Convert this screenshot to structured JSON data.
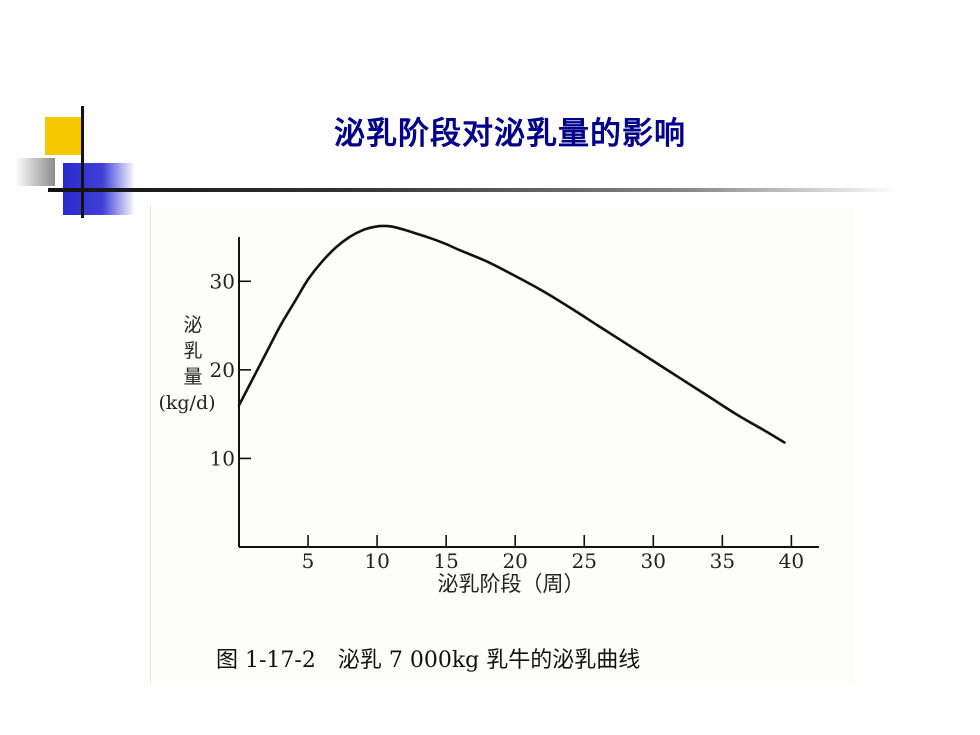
{
  "slide": {
    "title": "泌乳阶段对泌乳量的影响"
  },
  "figure": {
    "caption": "图 1-17-2　泌乳 7 000kg 乳牛的泌乳曲线"
  },
  "chart_data": {
    "type": "line",
    "title": "",
    "xlabel": "泌乳阶段（周）",
    "ylabel_lines": [
      "泌",
      "乳",
      "量",
      "(kg/d)"
    ],
    "xlim": [
      0,
      42
    ],
    "ylim": [
      0,
      35
    ],
    "x_ticks": [
      5,
      10,
      15,
      20,
      25,
      30,
      35,
      40
    ],
    "x_tick_labels": [
      "5",
      "10",
      "15",
      "20",
      "25",
      "30",
      "35",
      "40"
    ],
    "y_ticks": [
      10,
      20,
      30
    ],
    "y_tick_labels": [
      "10",
      "20",
      "30"
    ],
    "grid": false,
    "series": [
      {
        "x": [
          0,
          1,
          2,
          3,
          4,
          5,
          6,
          7,
          8,
          9,
          10,
          11,
          12,
          13,
          14,
          15,
          16,
          18,
          20,
          22,
          24,
          26,
          28,
          30,
          32,
          34,
          36,
          38,
          39.5
        ],
        "y": [
          16,
          19,
          22,
          25,
          27.6,
          30.2,
          32.2,
          33.8,
          35,
          35.8,
          36.2,
          36.2,
          35.8,
          35.3,
          34.8,
          34.2,
          33.5,
          32.2,
          30.6,
          28.9,
          27,
          25,
          23,
          21,
          19,
          17,
          15,
          13.2,
          11.8
        ],
        "color": "#111111"
      }
    ]
  }
}
